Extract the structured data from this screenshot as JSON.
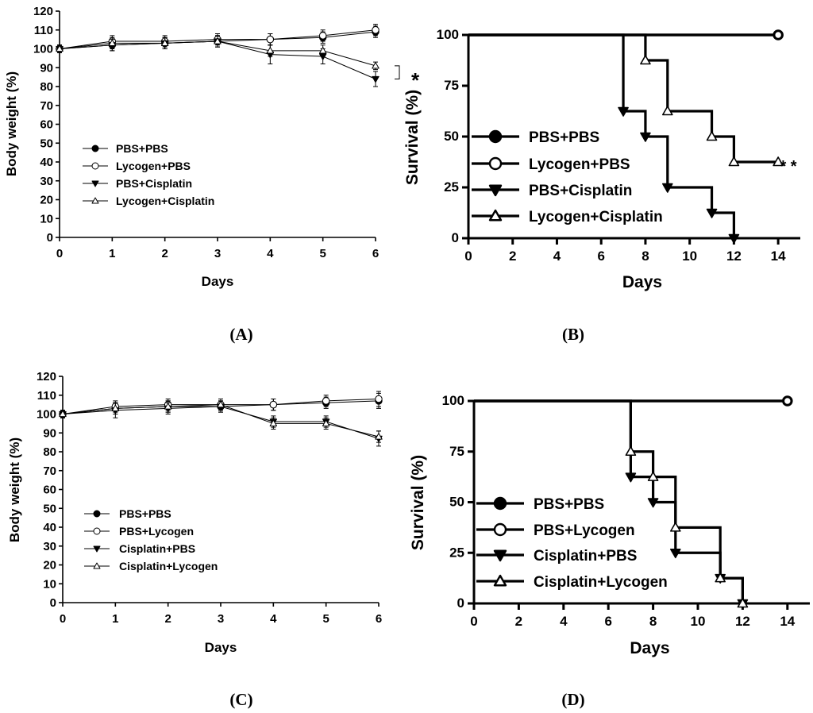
{
  "chart_data": [
    {
      "panel": "A",
      "panel_label": "(A)",
      "type": "line",
      "xlabel": "Days",
      "ylabel": "Body weight (%)",
      "x": [
        0,
        1,
        2,
        3,
        4,
        5,
        6
      ],
      "xlim": [
        0,
        6
      ],
      "ylim": [
        0,
        120
      ],
      "xticks": [
        0,
        1,
        2,
        3,
        4,
        5,
        6
      ],
      "yticks": [
        0,
        10,
        20,
        30,
        40,
        50,
        60,
        70,
        80,
        90,
        100,
        110,
        120
      ],
      "grid": false,
      "legend_position": "lower-left",
      "series": [
        {
          "name": "PBS+PBS",
          "marker": "filled-circle",
          "values": [
            100,
            102,
            103,
            104,
            105,
            106,
            109
          ],
          "errors": [
            2,
            3,
            3,
            3,
            3,
            3,
            3
          ]
        },
        {
          "name": "Lycogen+PBS",
          "marker": "open-circle",
          "values": [
            100,
            104,
            104,
            105,
            105,
            107,
            110
          ],
          "errors": [
            2,
            3,
            3,
            3,
            3,
            3,
            3
          ]
        },
        {
          "name": "PBS+Cisplatin",
          "marker": "filled-triangle-down",
          "values": [
            100,
            102,
            103,
            104,
            97,
            96,
            84
          ],
          "errors": [
            2,
            3,
            3,
            3,
            5,
            4,
            4
          ]
        },
        {
          "name": "Lycogen+Cisplatin",
          "marker": "open-triangle-up",
          "values": [
            100,
            103,
            103,
            104,
            99,
            99,
            91
          ],
          "errors": [
            2,
            3,
            3,
            3,
            3,
            3,
            2
          ]
        }
      ],
      "annotations": [
        {
          "text": "*",
          "bracket_y": [
            84,
            91
          ]
        }
      ]
    },
    {
      "panel": "B",
      "panel_label": "(B)",
      "type": "line",
      "xlabel": "Days",
      "ylabel": "Survival (%)",
      "xlim": [
        0,
        15
      ],
      "ylim": [
        0,
        100
      ],
      "xticks": [
        0,
        2,
        4,
        6,
        8,
        10,
        12,
        14
      ],
      "yticks": [
        0,
        25,
        50,
        75,
        100
      ],
      "grid": false,
      "legend_position": "lower-left",
      "series": [
        {
          "name": "PBS+PBS",
          "marker": "filled-circle",
          "steps": [
            [
              0,
              100
            ],
            [
              14,
              100
            ]
          ]
        },
        {
          "name": "Lycogen+PBS",
          "marker": "open-circle",
          "steps": [
            [
              0,
              100
            ],
            [
              14,
              100
            ]
          ],
          "end_marker": [
            14,
            100
          ]
        },
        {
          "name": "PBS+Cisplatin",
          "marker": "filled-triangle-down",
          "steps": [
            [
              0,
              100
            ],
            [
              7,
              62.5
            ],
            [
              8,
              50
            ],
            [
              9,
              25
            ],
            [
              11,
              12.5
            ],
            [
              12,
              0
            ]
          ]
        },
        {
          "name": "Lycogen+Cisplatin",
          "marker": "open-triangle-up",
          "steps": [
            [
              0,
              100
            ],
            [
              8,
              87.5
            ],
            [
              9,
              62.5
            ],
            [
              11,
              50
            ],
            [
              12,
              37.5
            ],
            [
              14,
              37.5
            ]
          ]
        }
      ],
      "annotations": [
        {
          "text": "* *",
          "x": 14,
          "y": 37.5
        }
      ]
    },
    {
      "panel": "C",
      "panel_label": "(C)",
      "type": "line",
      "xlabel": "Days",
      "ylabel": "Body weight (%)",
      "x": [
        0,
        1,
        2,
        3,
        4,
        5,
        6
      ],
      "xlim": [
        0,
        6
      ],
      "ylim": [
        0,
        120
      ],
      "xticks": [
        0,
        1,
        2,
        3,
        4,
        5,
        6
      ],
      "yticks": [
        0,
        10,
        20,
        30,
        40,
        50,
        60,
        70,
        80,
        90,
        100,
        110,
        120
      ],
      "grid": false,
      "legend_position": "lower-left",
      "series": [
        {
          "name": "PBS+PBS",
          "marker": "filled-circle",
          "values": [
            100,
            103,
            104,
            104,
            105,
            106,
            107
          ],
          "errors": [
            2,
            3,
            3,
            3,
            3,
            3,
            4
          ]
        },
        {
          "name": "PBS+Lycogen",
          "marker": "open-circle",
          "values": [
            100,
            104,
            105,
            105,
            105,
            107,
            108
          ],
          "errors": [
            2,
            3,
            3,
            3,
            3,
            3,
            4
          ]
        },
        {
          "name": "Cisplatin+PBS",
          "marker": "filled-triangle-down",
          "values": [
            100,
            102,
            103,
            104,
            96,
            96,
            87
          ],
          "errors": [
            2,
            4,
            3,
            3,
            3,
            3,
            4
          ]
        },
        {
          "name": "Cisplatin+Lycogen",
          "marker": "open-triangle-up",
          "values": [
            100,
            103,
            104,
            105,
            95,
            95,
            88
          ],
          "errors": [
            2,
            3,
            3,
            3,
            3,
            3,
            3
          ]
        }
      ]
    },
    {
      "panel": "D",
      "panel_label": "(D)",
      "type": "line",
      "xlabel": "Days",
      "ylabel": "Survival (%)",
      "xlim": [
        0,
        15
      ],
      "ylim": [
        0,
        100
      ],
      "xticks": [
        0,
        2,
        4,
        6,
        8,
        10,
        12,
        14
      ],
      "yticks": [
        0,
        25,
        50,
        75,
        100
      ],
      "grid": false,
      "legend_position": "lower-left",
      "series": [
        {
          "name": "PBS+PBS",
          "marker": "filled-circle",
          "steps": [
            [
              0,
              100
            ],
            [
              14,
              100
            ]
          ]
        },
        {
          "name": "PBS+Lycogen",
          "marker": "open-circle",
          "steps": [
            [
              0,
              100
            ],
            [
              14,
              100
            ]
          ],
          "end_marker": [
            14,
            100
          ]
        },
        {
          "name": "Cisplatin+PBS",
          "marker": "filled-triangle-down",
          "steps": [
            [
              0,
              100
            ],
            [
              7,
              62.5
            ],
            [
              8,
              50
            ],
            [
              9,
              25
            ],
            [
              11,
              12.5
            ],
            [
              12,
              0
            ]
          ]
        },
        {
          "name": "Cisplatin+Lycogen",
          "marker": "open-triangle-up",
          "steps": [
            [
              0,
              100
            ],
            [
              7,
              75
            ],
            [
              8,
              62.5
            ],
            [
              9,
              37.5
            ],
            [
              11,
              12.5
            ],
            [
              12,
              0
            ]
          ]
        }
      ]
    }
  ]
}
